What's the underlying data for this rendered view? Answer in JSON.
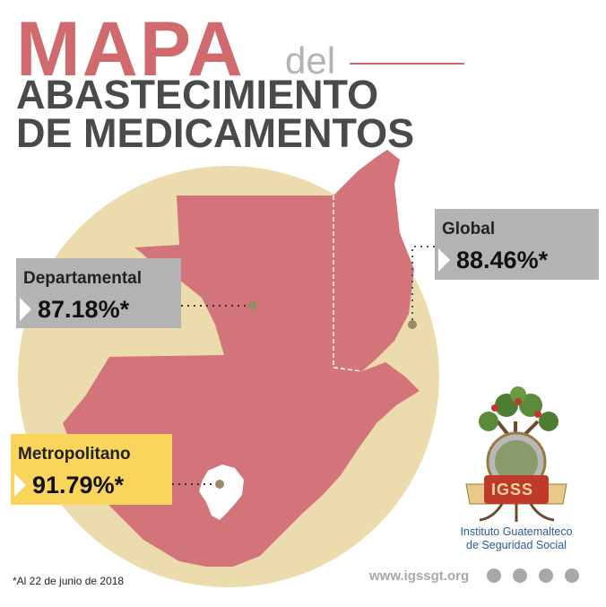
{
  "header": {
    "title": "MAPA",
    "connector": "del",
    "subtitle_lines": [
      "ABASTECIMIENTO",
      "DE MEDICAMENTOS"
    ]
  },
  "stats": [
    {
      "label": "Departamental",
      "value": "87.18%*"
    },
    {
      "label": "Global",
      "value": "88.46%*"
    },
    {
      "label": "Metropolitano",
      "value": "91.79%*"
    }
  ],
  "logo": {
    "acronym": "IGSS",
    "name_lines": [
      "Instituto Guatemalteco",
      "de Seguridad Social"
    ]
  },
  "footer": {
    "footnote": "*Al 22 de junio de 2018",
    "website": "www.igssgt.org"
  }
}
